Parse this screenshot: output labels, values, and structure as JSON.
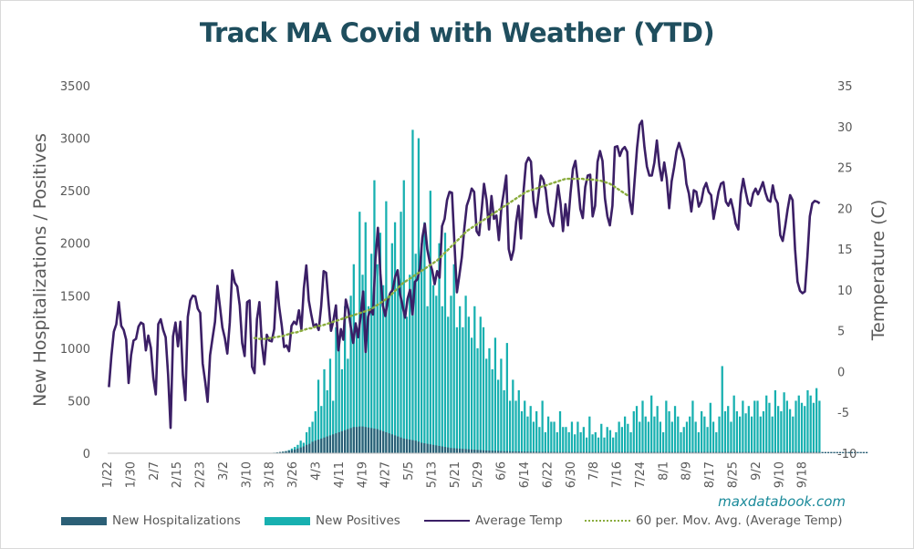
{
  "title": "Track MA Covid with Weather (YTD)",
  "watermark": "maxdatabook.com",
  "colors": {
    "hospitalizations": "#2b5f76",
    "positives": "#17b0b0",
    "avg_temp": "#3b1f66",
    "moving_avg": "#8aac3e",
    "title": "#1f4e5e"
  },
  "chart_data": {
    "type": "bar",
    "title": "Track MA Covid with Weather (YTD)",
    "ylabel": "New Hospitalizations / Positives",
    "y2label": "Temperature (C)",
    "ylim": [
      0,
      3500
    ],
    "y2lim": [
      -10,
      35
    ],
    "yticks": [
      "0",
      "500",
      "1000",
      "1500",
      "2000",
      "2500",
      "3000",
      "3500"
    ],
    "y2ticks": [
      "-10",
      "-5",
      "0",
      "5",
      "10",
      "15",
      "20",
      "25",
      "30",
      "35"
    ],
    "xticks": [
      "1/22",
      "1/30",
      "2/7",
      "2/15",
      "2/23",
      "3/2",
      "3/10",
      "3/18",
      "3/26",
      "4/3",
      "4/11",
      "4/19",
      "4/27",
      "5/5",
      "5/13",
      "5/21",
      "5/29",
      "6/6",
      "6/14",
      "6/22",
      "6/30",
      "7/8",
      "7/16",
      "7/24",
      "8/1",
      "8/9",
      "8/17",
      "8/25",
      "9/2",
      "9/10",
      "9/18"
    ],
    "x_start": "1/22",
    "grid": false,
    "legend_position": "bottom",
    "legend": [
      "New Hospitalizations",
      "New Positives",
      "Average Temp",
      "60 per. Mov. Avg. (Average Temp)"
    ],
    "series": [
      {
        "name": "New Hospitalizations",
        "axis": "left",
        "type": "bar",
        "values": [
          0,
          0,
          0,
          0,
          0,
          0,
          0,
          0,
          0,
          0,
          0,
          0,
          0,
          0,
          0,
          0,
          0,
          0,
          0,
          0,
          0,
          0,
          0,
          0,
          0,
          0,
          0,
          0,
          0,
          0,
          0,
          0,
          0,
          0,
          0,
          0,
          0,
          0,
          0,
          0,
          0,
          0,
          0,
          0,
          0,
          0,
          0,
          0,
          0,
          0,
          0,
          0,
          0,
          0,
          0,
          0,
          5,
          8,
          12,
          15,
          20,
          25,
          30,
          35,
          45,
          55,
          65,
          80,
          90,
          110,
          120,
          130,
          140,
          150,
          160,
          170,
          180,
          190,
          200,
          210,
          220,
          230,
          240,
          250,
          250,
          255,
          255,
          250,
          245,
          240,
          235,
          230,
          220,
          210,
          200,
          190,
          180,
          170,
          160,
          150,
          140,
          135,
          130,
          125,
          120,
          110,
          100,
          95,
          90,
          85,
          80,
          75,
          70,
          65,
          60,
          55,
          50,
          48,
          46,
          44,
          42,
          40,
          38,
          36,
          34,
          32,
          30,
          28,
          26,
          25,
          24,
          23,
          22,
          21,
          20,
          20,
          19,
          18,
          18,
          17,
          17,
          16,
          16,
          15,
          15,
          15,
          14,
          14,
          14,
          13,
          13,
          13,
          12,
          12,
          12,
          12,
          12,
          12,
          12,
          12,
          12,
          12,
          12,
          12,
          12,
          12,
          12,
          12,
          12,
          12,
          12,
          12,
          12,
          12,
          12,
          12,
          12,
          12,
          12,
          12,
          12,
          12,
          12,
          12,
          12,
          12,
          12,
          12,
          12,
          12,
          12,
          12,
          12,
          12,
          12,
          12,
          12,
          12,
          12,
          12,
          12,
          12,
          12,
          12,
          12,
          12,
          12,
          12,
          12,
          12,
          12,
          12,
          12,
          12,
          12,
          12,
          12,
          12,
          12,
          12,
          12,
          12,
          12,
          12,
          12,
          12,
          12,
          12,
          12,
          12,
          12,
          12,
          12,
          12,
          12,
          12,
          12,
          12,
          12,
          12,
          12,
          12,
          12,
          12,
          12,
          12,
          12,
          12,
          12,
          12,
          12,
          12,
          12,
          12,
          12,
          12,
          12,
          12
        ]
      },
      {
        "name": "New Positives",
        "axis": "left",
        "type": "bar",
        "values": [
          0,
          0,
          0,
          0,
          0,
          0,
          0,
          0,
          0,
          0,
          0,
          0,
          0,
          0,
          0,
          0,
          0,
          0,
          0,
          0,
          0,
          0,
          0,
          0,
          0,
          0,
          0,
          0,
          0,
          0,
          0,
          0,
          0,
          0,
          0,
          0,
          0,
          0,
          0,
          0,
          0,
          0,
          0,
          0,
          0,
          0,
          0,
          0,
          1,
          0,
          0,
          0,
          2,
          0,
          0,
          3,
          5,
          8,
          10,
          15,
          20,
          30,
          45,
          60,
          80,
          120,
          100,
          200,
          250,
          300,
          400,
          700,
          450,
          800,
          600,
          900,
          500,
          1200,
          1100,
          800,
          1400,
          900,
          1500,
          1800,
          1200,
          2300,
          1700,
          2200,
          1400,
          1900,
          2600,
          1800,
          2100,
          1600,
          2400,
          1500,
          2000,
          2200,
          1700,
          2300,
          2600,
          1300,
          1700,
          3080,
          1900,
          3000,
          2000,
          2200,
          1400,
          2500,
          1600,
          1500,
          2000,
          1400,
          2100,
          1300,
          1500,
          1800,
          1200,
          1400,
          1200,
          1500,
          1300,
          1100,
          1400,
          1000,
          1300,
          1200,
          900,
          1000,
          800,
          1100,
          700,
          900,
          600,
          1050,
          500,
          700,
          500,
          600,
          400,
          500,
          350,
          450,
          300,
          400,
          250,
          500,
          200,
          350,
          300,
          300,
          200,
          400,
          250,
          250,
          200,
          300,
          180,
          300,
          200,
          250,
          150,
          350,
          180,
          200,
          150,
          280,
          150,
          250,
          220,
          150,
          200,
          300,
          250,
          350,
          280,
          200,
          400,
          450,
          300,
          500,
          350,
          300,
          550,
          350,
          450,
          300,
          200,
          500,
          400,
          300,
          450,
          350,
          200,
          250,
          300,
          350,
          500,
          300,
          200,
          400,
          350,
          250,
          480,
          300,
          200,
          350,
          830,
          400,
          450,
          300,
          550,
          400,
          350,
          500,
          380,
          450,
          350,
          500,
          500,
          350,
          400,
          550,
          480,
          350,
          600,
          450,
          400,
          580,
          500,
          420,
          350,
          500,
          550,
          480,
          450,
          600,
          550,
          480,
          620,
          500
        ]
      },
      {
        "name": "Average Temp",
        "axis": "right",
        "type": "line",
        "values": [
          -1.9,
          1.9,
          4.9,
          5.8,
          8.5,
          5.6,
          5.1,
          3.9,
          -1.4,
          2.0,
          3.8,
          4.0,
          5.5,
          6.0,
          5.8,
          2.6,
          4.4,
          2.9,
          -0.8,
          -2.8,
          5.8,
          6.4,
          5.1,
          4.2,
          -0.4,
          -6.9,
          4.3,
          6.0,
          3.1,
          6.1,
          -0.4,
          -3.5,
          6.7,
          8.7,
          9.3,
          9.2,
          7.7,
          7.2,
          1.0,
          -1.2,
          -3.7,
          2.0,
          4.1,
          6.1,
          10.5,
          8.0,
          5.4,
          4.1,
          2.2,
          6.0,
          12.4,
          10.9,
          10.4,
          8.1,
          3.5,
          1.9,
          8.5,
          8.7,
          0.6,
          -0.2,
          6.4,
          8.5,
          3.4,
          0.9,
          4.5,
          3.8,
          3.7,
          5.2,
          11.0,
          7.9,
          5.7,
          3.0,
          3.2,
          2.5,
          5.6,
          6.1,
          5.8,
          7.5,
          5.2,
          10.2,
          13.0,
          8.7,
          7.0,
          5.5,
          5.8,
          5.1,
          8.0,
          12.3,
          12.1,
          8.4,
          5.0,
          6.3,
          8.1,
          2.6,
          5.2,
          3.9,
          8.8,
          7.6,
          5.5,
          3.5,
          5.9,
          4.2,
          6.8,
          9.8,
          2.4,
          6.7,
          7.6,
          7.0,
          13.8,
          17.6,
          12.0,
          8.1,
          6.8,
          8.7,
          9.6,
          10.0,
          11.6,
          12.4,
          9.5,
          8.0,
          6.6,
          8.9,
          10.0,
          7.0,
          11.0,
          11.3,
          12.6,
          16.4,
          18.1,
          15.0,
          13.4,
          12.4,
          10.7,
          12.3,
          11.5,
          17.8,
          18.7,
          21.0,
          22.0,
          21.9,
          15.7,
          9.7,
          11.8,
          14.0,
          17.5,
          20.3,
          21.2,
          22.4,
          22.0,
          17.2,
          16.7,
          19.6,
          23.0,
          21.0,
          17.4,
          21.5,
          18.7,
          19.1,
          16.1,
          20.0,
          21.9,
          24.0,
          15.0,
          13.7,
          14.9,
          18.3,
          20.3,
          16.3,
          22.0,
          25.5,
          26.2,
          25.7,
          20.9,
          18.9,
          21.5,
          24.0,
          23.5,
          22.2,
          19.5,
          18.3,
          17.8,
          20.2,
          22.8,
          20.6,
          17.2,
          20.5,
          17.9,
          21.8,
          24.8,
          25.8,
          23.2,
          19.9,
          18.8,
          22.6,
          24.0,
          24.1,
          19.0,
          20.3,
          25.7,
          27.0,
          25.8,
          21.2,
          19.0,
          17.9,
          20.3,
          27.5,
          27.6,
          26.4,
          27.2,
          27.5,
          26.9,
          21.0,
          19.3,
          23.4,
          27.4,
          30.2,
          30.7,
          27.5,
          25.1,
          24.0,
          24.0,
          25.6,
          28.3,
          25.2,
          23.4,
          25.6,
          23.6,
          20.0,
          23.3,
          25.0,
          27.0,
          28.0,
          27.0,
          25.9,
          23.0,
          21.8,
          19.6,
          22.2,
          22.0,
          20.2,
          20.8,
          22.4,
          23.1,
          22.0,
          21.6,
          18.7,
          20.3,
          22.0,
          23.0,
          23.2,
          20.8,
          20.3,
          21.1,
          19.8,
          18.1,
          17.4,
          21.7,
          23.6,
          22.0,
          20.6,
          20.3,
          21.8,
          22.4,
          21.7,
          22.4,
          23.2,
          21.9,
          21.0,
          20.8,
          22.8,
          21.2,
          20.6,
          16.7,
          16.0,
          17.8,
          19.9,
          21.6,
          21.0,
          15.0,
          11.0,
          9.9,
          9.6,
          9.8,
          14.0,
          19.0,
          20.6,
          20.9,
          20.8,
          20.6
        ]
      },
      {
        "name": "60 per. Mov. Avg. (Average Temp)",
        "axis": "right",
        "type": "line",
        "style": "dotted",
        "start_index": 59,
        "values": [
          4.1,
          4.1,
          4.0,
          4.0,
          4.0,
          4.0,
          4.1,
          4.1,
          4.2,
          4.2,
          4.3,
          4.3,
          4.4,
          4.5,
          4.6,
          4.7,
          4.8,
          4.8,
          4.9,
          5.0,
          5.1,
          5.2,
          5.3,
          5.3,
          5.4,
          5.5,
          5.6,
          5.6,
          5.7,
          5.8,
          5.9,
          6.0,
          6.1,
          6.2,
          6.3,
          6.4,
          6.5,
          6.6,
          6.7,
          6.8,
          6.9,
          7.0,
          7.1,
          7.2,
          7.3,
          7.4,
          7.5,
          7.6,
          7.8,
          8.0,
          8.2,
          8.4,
          8.6,
          8.8,
          9.0,
          9.3,
          9.6,
          9.9,
          10.2,
          10.5,
          10.8,
          11.0,
          11.2,
          11.4,
          11.6,
          11.8,
          12.0,
          12.2,
          12.4,
          12.6,
          12.8,
          13.0,
          13.2,
          13.4,
          13.6,
          13.9,
          14.2,
          14.5,
          14.8,
          15.1,
          15.4,
          15.7,
          16.0,
          16.3,
          16.6,
          16.9,
          17.2,
          17.4,
          17.6,
          17.8,
          18.0,
          18.2,
          18.4,
          18.6,
          18.8,
          19.0,
          19.2,
          19.4,
          19.6,
          19.8,
          20.0,
          20.2,
          20.4,
          20.6,
          20.8,
          21.0,
          21.2,
          21.4,
          21.6,
          21.8,
          22.0,
          22.1,
          22.2,
          22.3,
          22.4,
          22.5,
          22.6,
          22.7,
          22.8,
          22.9,
          23.0,
          23.1,
          23.2,
          23.3,
          23.4,
          23.5,
          23.6,
          23.6,
          23.6,
          23.6,
          23.6,
          23.6,
          23.6,
          23.6,
          23.5,
          23.5,
          23.5,
          23.5,
          23.5,
          23.4,
          23.4,
          23.3,
          23.2,
          23.1,
          23.0,
          22.8,
          22.6,
          22.4,
          22.2,
          22.0,
          21.8,
          21.6,
          21.5
        ]
      }
    ]
  }
}
